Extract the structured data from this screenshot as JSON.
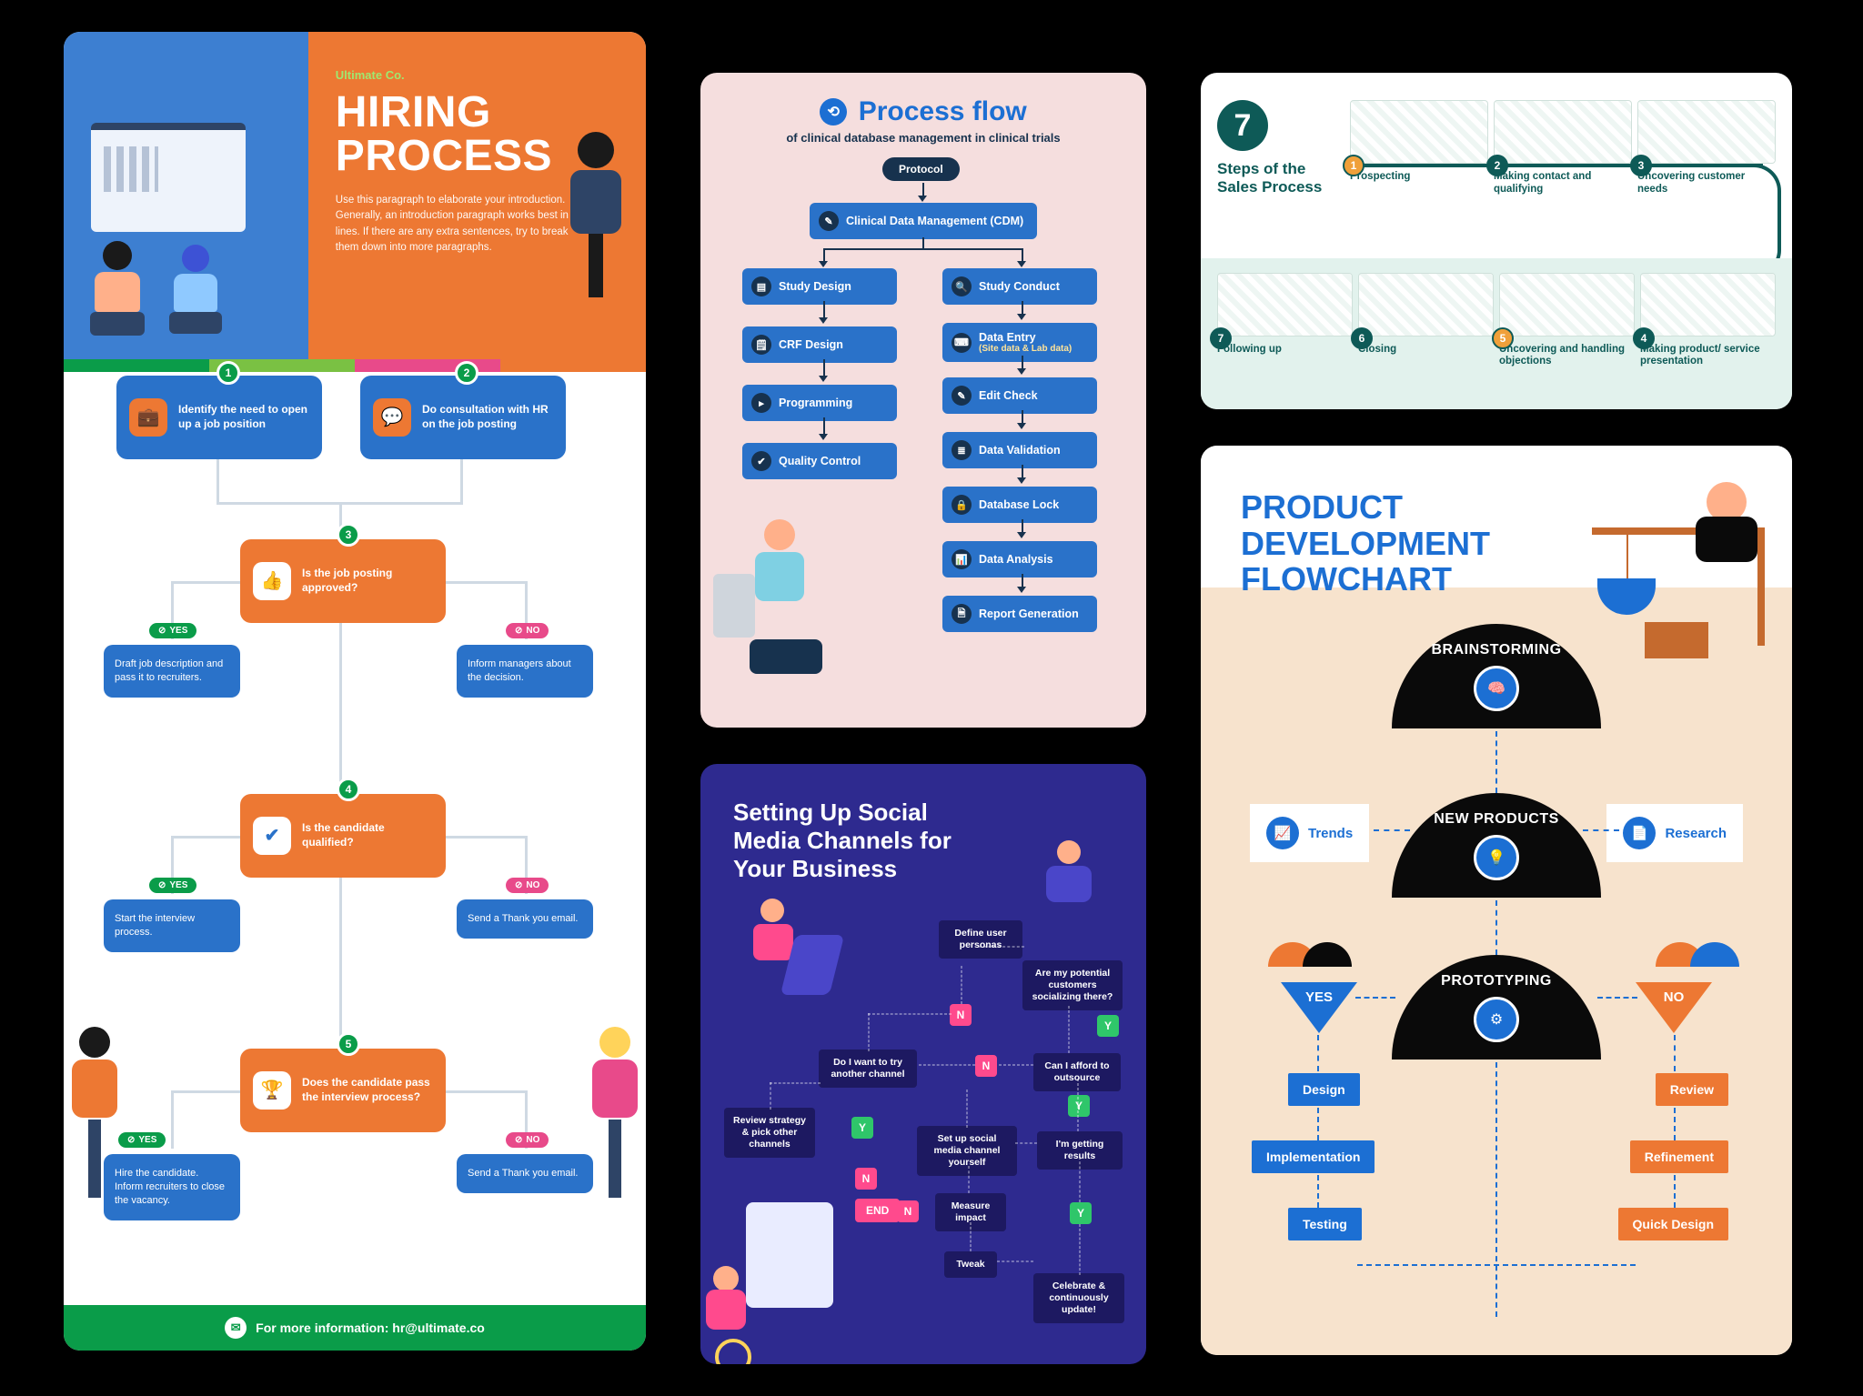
{
  "hiring": {
    "company": "Ultimate Co.",
    "title": "HIRING PROCESS",
    "intro": "Use this paragraph to elaborate your introduction. Generally, an introduction paragraph works best in 4–6 lines. If there are any extra sentences, try to break them down into more paragraphs.",
    "stripe_colors": [
      "#0a9c49",
      "#7ac143",
      "#e84a8a",
      "#ed7833"
    ],
    "footer": "For more information: hr@ultimate.co",
    "colors": {
      "blue": "#2a72c9",
      "orange": "#ed7833",
      "green": "#0a9c49",
      "pink": "#e84a8a",
      "heroBlue": "#3d7fd1"
    },
    "yes_label": "YES",
    "no_label": "NO",
    "nodes": {
      "n1": "Identify the need to open up a job position",
      "n2": "Do consultation with HR on the job posting",
      "n3": "Is the job posting approved?",
      "n4": "Is the candidate qualified?",
      "n5": "Does the candidate pass the interview process?",
      "left3": "Draft job description and pass it to recruiters.",
      "right3": "Inform managers about the decision.",
      "left4": "Start the interview process.",
      "right4": "Send a Thank you email.",
      "left5": "Hire the candidate. Inform recruiters to close the vacancy.",
      "right5": "Send a Thank you email."
    }
  },
  "clinical": {
    "title": "Process flow",
    "subtitle": "of clinical database management in clinical trials",
    "colors": {
      "bg": "#f5dede",
      "bar": "#2a72c9",
      "dark": "#17324e",
      "title": "#1c6fd3"
    },
    "root": "Protocol",
    "cdm": "Clinical Data Management (CDM)",
    "left": [
      "Study Design",
      "CRF Design",
      "Programming",
      "Quality Control"
    ],
    "right": [
      "Study Conduct",
      "Data Entry",
      "Edit Check",
      "Data Validation",
      "Database Lock",
      "Data Analysis",
      "Report Generation"
    ],
    "right_sub": {
      "1": "(Site data & Lab data)"
    }
  },
  "social": {
    "title": "Setting Up Social Media Channels for Your Business",
    "colors": {
      "bg": "#2e2a8f",
      "node": "#1d1961",
      "yes": "#2fc66a",
      "no": "#ff4a8d"
    },
    "nodes": {
      "define": "Define user personas",
      "potential": "Are my potential customers socializing there?",
      "try": "Do I want to try another channel",
      "afford": "Can I afford to outsource",
      "review": "Review strategy & pick other channels",
      "setup": "Set up social media channel yourself",
      "results": "I'm getting results",
      "measure": "Measure impact",
      "tweak": "Tweak",
      "celebrate": "Celebrate & continuously update!"
    },
    "Y": "Y",
    "N": "N",
    "END": "END"
  },
  "sales": {
    "number": "7",
    "heading": "Steps of the Sales Process",
    "colors": {
      "teal": "#0e5a57",
      "mint": "#e2f2ed",
      "orange": "#f0a03a"
    },
    "steps": [
      {
        "n": "1",
        "label": "Prospecting",
        "color": "#f0a03a"
      },
      {
        "n": "2",
        "label": "Making contact and qualifying",
        "color": "#0e5a57"
      },
      {
        "n": "3",
        "label": "Uncovering customer needs",
        "color": "#0e5a57"
      },
      {
        "n": "4",
        "label": "Making product/ service presentation",
        "color": "#0e5a57"
      },
      {
        "n": "5",
        "label": "Uncovering and handling objections",
        "color": "#f0a03a"
      },
      {
        "n": "6",
        "label": "Closing",
        "color": "#0e5a57"
      },
      {
        "n": "7",
        "label": "Following up",
        "color": "#0e5a57"
      }
    ]
  },
  "product": {
    "title": "PRODUCT DEVELOPMENT FLOWCHART",
    "colors": {
      "blue": "#1c6fd3",
      "orange": "#ed7833",
      "black": "#0a0a0a",
      "sand": "#f7e3cd"
    },
    "stages": {
      "a": "BRAINSTORMING",
      "b": "NEW PRODUCTS",
      "c": "PROTOTYPING"
    },
    "inputs": {
      "trends": "Trends",
      "research": "Research"
    },
    "yes": "YES",
    "no": "NO",
    "yes_path": [
      "Design",
      "Implementation",
      "Testing"
    ],
    "no_path": [
      "Review",
      "Refinement",
      "Quick Design"
    ]
  }
}
